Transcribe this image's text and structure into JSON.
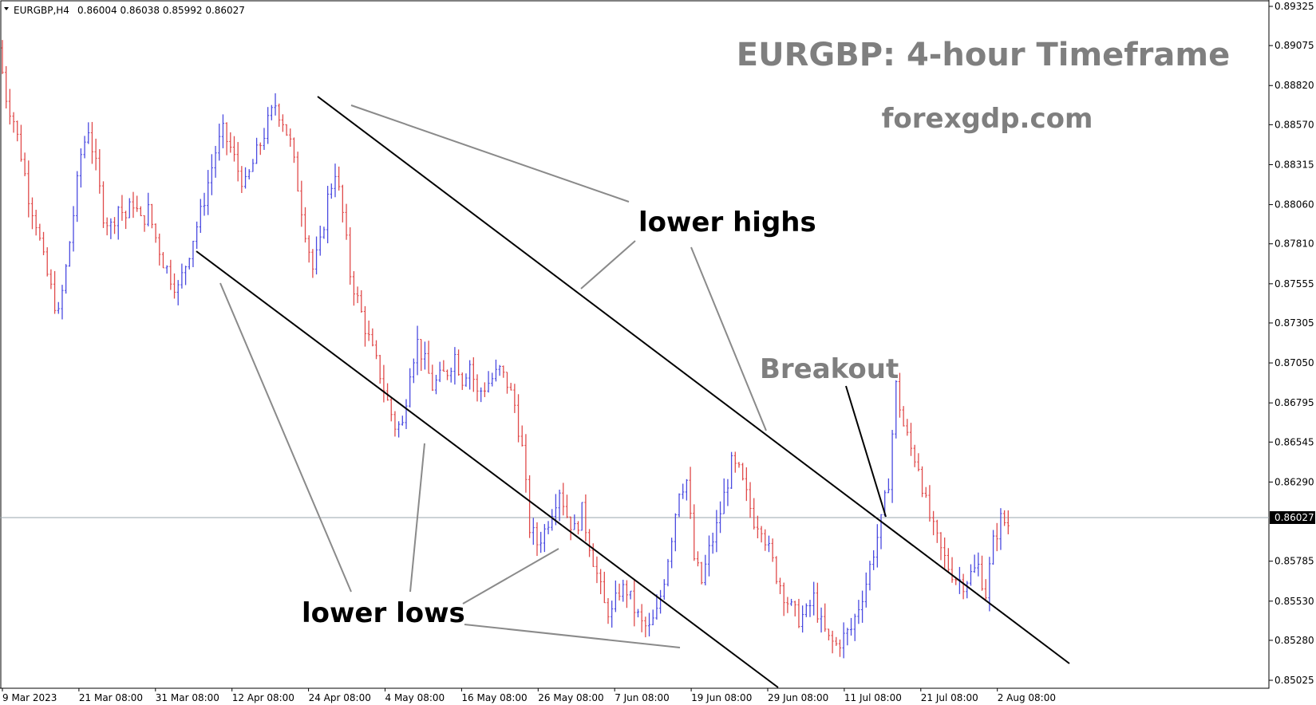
{
  "header": {
    "symbol": "EURGBP,H4",
    "ohlc": "0.86004 0.86038 0.85992 0.86027"
  },
  "title": "EURGBP: 4-hour Timeframe",
  "subtitle": "forexgdp.com",
  "annotations": {
    "lower_highs": "lower highs",
    "lower_lows": "lower lows",
    "breakout": "Breakout"
  },
  "colors": {
    "bull": "#4a4ae0",
    "bear": "#e04a4a",
    "trendline": "#000000",
    "pointer": "#8a8a8a",
    "title": "#7f7f7f",
    "price_line": "#9aa4ad"
  },
  "chart_data": {
    "type": "candlestick",
    "symbol": "EURGBP",
    "timeframe": "H4",
    "current_price": "0.86027",
    "yticks": [
      "0.89325",
      "0.89075",
      "0.88820",
      "0.88570",
      "0.88315",
      "0.88060",
      "0.87810",
      "0.87555",
      "0.87305",
      "0.87050",
      "0.86795",
      "0.86545",
      "0.86290",
      "0.86027",
      "0.85785",
      "0.85530",
      "0.85280",
      "0.85025"
    ],
    "xticks": [
      "9 Mar 2023",
      "21 Mar 08:00",
      "31 Mar 08:00",
      "12 Apr 08:00",
      "24 Apr 08:00",
      "4 May 08:00",
      "16 May 08:00",
      "26 May 08:00",
      "7 Jun 08:00",
      "19 Jun 08:00",
      "29 Jun 08:00",
      "11 Jul 08:00",
      "21 Jul 08:00",
      "2 Aug 08:00"
    ],
    "ylim": [
      0.8497,
      0.8935
    ],
    "closes": [
      0.8906,
      0.8875,
      0.886,
      0.8838,
      0.8812,
      0.8795,
      0.877,
      0.8752,
      0.8735,
      0.8765,
      0.88,
      0.8838,
      0.8855,
      0.883,
      0.88,
      0.8792,
      0.8805,
      0.8798,
      0.8808,
      0.8795,
      0.8802,
      0.8785,
      0.877,
      0.876,
      0.8752,
      0.8768,
      0.8785,
      0.88,
      0.882,
      0.884,
      0.8852,
      0.8842,
      0.8828,
      0.8818,
      0.8832,
      0.8845,
      0.8858,
      0.887,
      0.886,
      0.8845,
      0.8818,
      0.879,
      0.8765,
      0.878,
      0.881,
      0.8828,
      0.88,
      0.8762,
      0.8745,
      0.8728,
      0.8712,
      0.8698,
      0.868,
      0.8665,
      0.8665,
      0.8702,
      0.8718,
      0.8705,
      0.869,
      0.8695,
      0.87,
      0.871,
      0.8695,
      0.8705,
      0.8685,
      0.869,
      0.8695,
      0.87,
      0.8692,
      0.8678,
      0.865,
      0.86,
      0.859,
      0.8598,
      0.8612,
      0.8625,
      0.8608,
      0.8598,
      0.861,
      0.859,
      0.857,
      0.855,
      0.8545,
      0.856,
      0.856,
      0.8548,
      0.8538,
      0.8535,
      0.8545,
      0.8568,
      0.8595,
      0.8625,
      0.863,
      0.858,
      0.8565,
      0.8585,
      0.86,
      0.862,
      0.864,
      0.8635,
      0.862,
      0.8605,
      0.8602,
      0.8585,
      0.857,
      0.8558,
      0.8548,
      0.8542,
      0.8545,
      0.8555,
      0.8538,
      0.8528,
      0.8525,
      0.853,
      0.8535,
      0.855,
      0.8565,
      0.8585,
      0.8603,
      0.863,
      0.869,
      0.8665,
      0.865,
      0.864,
      0.8615,
      0.8598,
      0.8585,
      0.8575,
      0.8568,
      0.8565,
      0.857,
      0.8575,
      0.8558,
      0.859,
      0.8605,
      0.8602
    ],
    "trendlines": [
      {
        "from": {
          "time": "24 Apr 08:00",
          "price": 0.8885
        },
        "to": {
          "time": "2 Aug 08:00",
          "price": 0.8512
        }
      },
      {
        "from": {
          "time": "31 Mar 08:00",
          "price": 0.8782
        },
        "to": {
          "time": "26 May 08:00",
          "price": 0.8505
        }
      }
    ]
  }
}
